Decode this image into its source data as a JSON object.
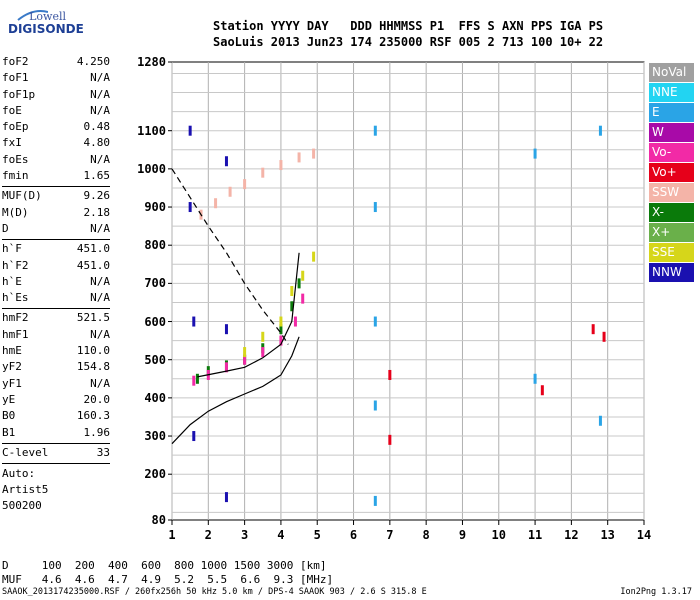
{
  "logo": {
    "line1": "Lowell",
    "line2": "DIGISONDE"
  },
  "header": {
    "labels": "Station YYYY DAY   DDD HHMMSS P1  FFS S AXN PPS IGA PS",
    "values": "SaoLuis 2013 Jun23 174 235000 RSF 005 2 713 100 10+ 22"
  },
  "params_group1": [
    {
      "k": "foF2",
      "v": "4.250"
    },
    {
      "k": "foF1",
      "v": "N/A"
    },
    {
      "k": "foF1p",
      "v": "N/A"
    },
    {
      "k": "foE",
      "v": "N/A"
    },
    {
      "k": "foEp",
      "v": "0.48"
    },
    {
      "k": "fxI",
      "v": "4.80"
    },
    {
      "k": "foEs",
      "v": "N/A"
    },
    {
      "k": "fmin",
      "v": "1.65"
    }
  ],
  "params_group2": [
    {
      "k": "MUF(D)",
      "v": "9.26"
    },
    {
      "k": "M(D)",
      "v": "2.18"
    },
    {
      "k": "D",
      "v": "N/A"
    }
  ],
  "params_group3": [
    {
      "k": "h`F",
      "v": "451.0"
    },
    {
      "k": "h`F2",
      "v": "451.0"
    },
    {
      "k": "h`E",
      "v": "N/A"
    },
    {
      "k": "h`Es",
      "v": "N/A"
    }
  ],
  "params_group4": [
    {
      "k": "hmF2",
      "v": "521.5"
    },
    {
      "k": "hmF1",
      "v": "N/A"
    },
    {
      "k": "hmE",
      "v": "110.0"
    },
    {
      "k": "yF2",
      "v": "154.8"
    },
    {
      "k": "yF1",
      "v": "N/A"
    },
    {
      "k": "yE",
      "v": "20.0"
    },
    {
      "k": "B0",
      "v": "160.3"
    },
    {
      "k": "B1",
      "v": "1.96"
    }
  ],
  "params_group5": [
    {
      "k": "C-level",
      "v": "33"
    }
  ],
  "auto_lines": [
    "Auto:",
    "Artist5",
    "500200"
  ],
  "legend": [
    {
      "label": "NoVal",
      "color": "#a0a0a0"
    },
    {
      "label": "NNE",
      "color": "#22d4f2"
    },
    {
      "label": "E",
      "color": "#2aa4e6"
    },
    {
      "label": "W",
      "color": "#a80aa8"
    },
    {
      "label": "Vo-",
      "color": "#f22aa6"
    },
    {
      "label": "Vo+",
      "color": "#e6001a"
    },
    {
      "label": "SSW",
      "color": "#f4b4a8"
    },
    {
      "label": "X-",
      "color": "#0a7a0a"
    },
    {
      "label": "X+",
      "color": "#6ab04a"
    },
    {
      "label": "SSE",
      "color": "#d6d61a"
    },
    {
      "label": "NNW",
      "color": "#1a10b0"
    }
  ],
  "muf_table": {
    "d_line": "D     100  200  400  600  800 1000 1500 3000 [km]",
    "muf_line": "MUF   4.6  4.6  4.7  4.9  5.2  5.5  6.6  9.3 [MHz]"
  },
  "footer": "SAAOK_2013174235000.RSF / 260fx256h 50 kHz 5.0 km / DPS-4 SAAOK 903 / 2.6 S 315.8 E",
  "version": "Ion2Png 1.3.17",
  "chart_data": {
    "type": "scatter",
    "xlabel": "",
    "ylabel": "",
    "x_ticks": [
      1,
      2,
      3,
      4,
      5,
      6,
      7,
      8,
      9,
      10,
      11,
      12,
      13,
      14
    ],
    "y_ticks": [
      80,
      200,
      300,
      400,
      500,
      600,
      700,
      800,
      900,
      1000,
      1100,
      1280
    ],
    "xlim": [
      1,
      14
    ],
    "ylim": [
      80,
      1280
    ],
    "grid": true,
    "legend_position": "right",
    "series": [
      {
        "name": "X-",
        "points": [
          [
            1.7,
            450
          ],
          [
            2.0,
            470
          ],
          [
            2.5,
            485
          ],
          [
            3.0,
            500
          ],
          [
            3.5,
            530
          ],
          [
            4.0,
            580
          ],
          [
            4.3,
            640
          ],
          [
            4.5,
            700
          ]
        ]
      },
      {
        "name": "Vo-",
        "points": [
          [
            1.6,
            445
          ],
          [
            2.0,
            460
          ],
          [
            2.5,
            480
          ],
          [
            3.0,
            500
          ],
          [
            3.5,
            520
          ],
          [
            4.0,
            550
          ],
          [
            4.4,
            600
          ],
          [
            4.6,
            660
          ]
        ]
      },
      {
        "name": "SSE",
        "points": [
          [
            3.0,
            520
          ],
          [
            3.5,
            560
          ],
          [
            4.0,
            600
          ],
          [
            4.3,
            680
          ],
          [
            4.6,
            720
          ],
          [
            4.9,
            770
          ]
        ]
      },
      {
        "name": "SSW",
        "points": [
          [
            1.8,
            880
          ],
          [
            2.2,
            910
          ],
          [
            2.6,
            940
          ],
          [
            3.0,
            960
          ],
          [
            3.5,
            990
          ],
          [
            4.0,
            1010
          ],
          [
            4.5,
            1030
          ],
          [
            4.9,
            1040
          ]
        ]
      },
      {
        "name": "NNW",
        "points": [
          [
            1.5,
            1100
          ],
          [
            1.5,
            900
          ],
          [
            1.6,
            600
          ],
          [
            1.6,
            300
          ],
          [
            2.5,
            1020
          ],
          [
            2.5,
            580
          ],
          [
            2.5,
            140
          ]
        ]
      },
      {
        "name": "E",
        "points": [
          [
            6.6,
            1100
          ],
          [
            6.6,
            900
          ],
          [
            6.6,
            600
          ],
          [
            6.6,
            380
          ],
          [
            6.6,
            130
          ],
          [
            11.0,
            1040
          ],
          [
            11.0,
            450
          ],
          [
            12.8,
            1100
          ],
          [
            12.8,
            340
          ]
        ]
      },
      {
        "name": "Vo+",
        "points": [
          [
            7.0,
            460
          ],
          [
            7.0,
            290
          ],
          [
            11.2,
            420
          ],
          [
            12.6,
            580
          ],
          [
            12.9,
            560
          ]
        ]
      }
    ],
    "profile_curve": [
      [
        1.0,
        280
      ],
      [
        1.5,
        330
      ],
      [
        2.0,
        365
      ],
      [
        2.5,
        390
      ],
      [
        3.0,
        410
      ],
      [
        3.5,
        430
      ],
      [
        4.0,
        460
      ],
      [
        4.3,
        510
      ],
      [
        4.5,
        560
      ]
    ],
    "fit_trace": [
      [
        1.7,
        455
      ],
      [
        2.5,
        470
      ],
      [
        3.0,
        480
      ],
      [
        3.5,
        505
      ],
      [
        4.0,
        540
      ],
      [
        4.3,
        600
      ],
      [
        4.5,
        780
      ]
    ],
    "dashed_trace": [
      [
        1.0,
        1000
      ],
      [
        2.0,
        850
      ],
      [
        2.5,
        780
      ],
      [
        3.0,
        700
      ],
      [
        3.5,
        630
      ],
      [
        4.0,
        570
      ],
      [
        4.2,
        540
      ]
    ]
  }
}
